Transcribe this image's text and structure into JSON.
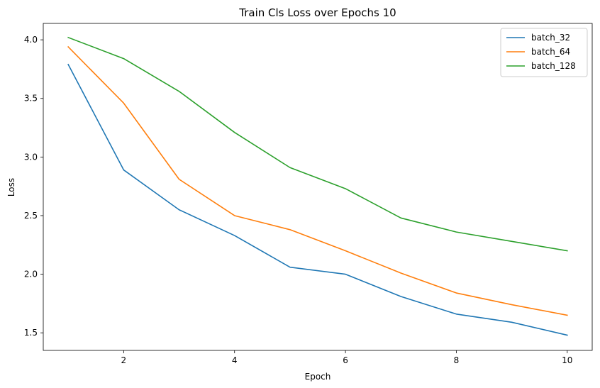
{
  "chart_data": {
    "type": "line",
    "title": "Train Cls Loss over Epochs 10",
    "xlabel": "Epoch",
    "ylabel": "Loss",
    "xlim": [
      0.55,
      10.45
    ],
    "ylim": [
      1.35,
      4.14
    ],
    "xticks": [
      2,
      4,
      6,
      8,
      10
    ],
    "yticks": [
      1.5,
      2.0,
      2.5,
      3.0,
      3.5,
      4.0
    ],
    "xtick_labels": [
      "2",
      "4",
      "6",
      "8",
      "10"
    ],
    "ytick_labels": [
      "1.5",
      "2.0",
      "2.5",
      "3.0",
      "3.5",
      "4.0"
    ],
    "grid": false,
    "legend_position": "top-right",
    "x": [
      1,
      2,
      3,
      4,
      5,
      6,
      7,
      8,
      9,
      10
    ],
    "series": [
      {
        "name": "batch_32",
        "color": "#1f77b4",
        "values": [
          3.79,
          2.89,
          2.55,
          2.33,
          2.06,
          2.0,
          1.81,
          1.66,
          1.59,
          1.48
        ]
      },
      {
        "name": "batch_64",
        "color": "#ff7f0e",
        "values": [
          3.94,
          3.46,
          2.81,
          2.5,
          2.38,
          2.2,
          2.01,
          1.84,
          1.74,
          1.65
        ]
      },
      {
        "name": "batch_128",
        "color": "#2ca02c",
        "values": [
          4.02,
          3.84,
          3.56,
          3.21,
          2.91,
          2.73,
          2.48,
          2.36,
          2.28,
          2.2
        ]
      }
    ]
  }
}
